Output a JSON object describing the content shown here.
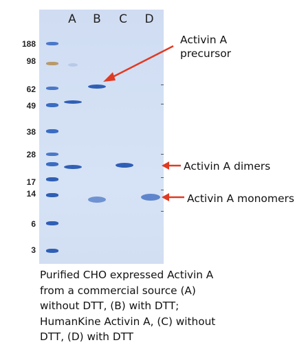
{
  "lanes": [
    "A",
    "B",
    "C",
    "D"
  ],
  "mw_markers": [
    "188",
    "98",
    "62",
    "49",
    "38",
    "28",
    "17",
    "14",
    "6",
    "3"
  ],
  "annotations": {
    "precursor_line1": "Activin A",
    "precursor_line2": "precursor",
    "dimers": "Activin A dimers",
    "monomers": "Activin A monomers"
  },
  "caption": {
    "line1": "Purified CHO expressed Activin A",
    "line2": "from a commercial source (A)",
    "line3": "without DTT, (B) with DTT;",
    "line4": "HumanKine Activin A, (C) without",
    "line5": "DTT, (D) with DTT"
  },
  "colors": {
    "gel_background": "#d3e0f4",
    "band": "#2f5fb5",
    "ladder": "#3a6cc2",
    "arrow": "#e03a22"
  }
}
